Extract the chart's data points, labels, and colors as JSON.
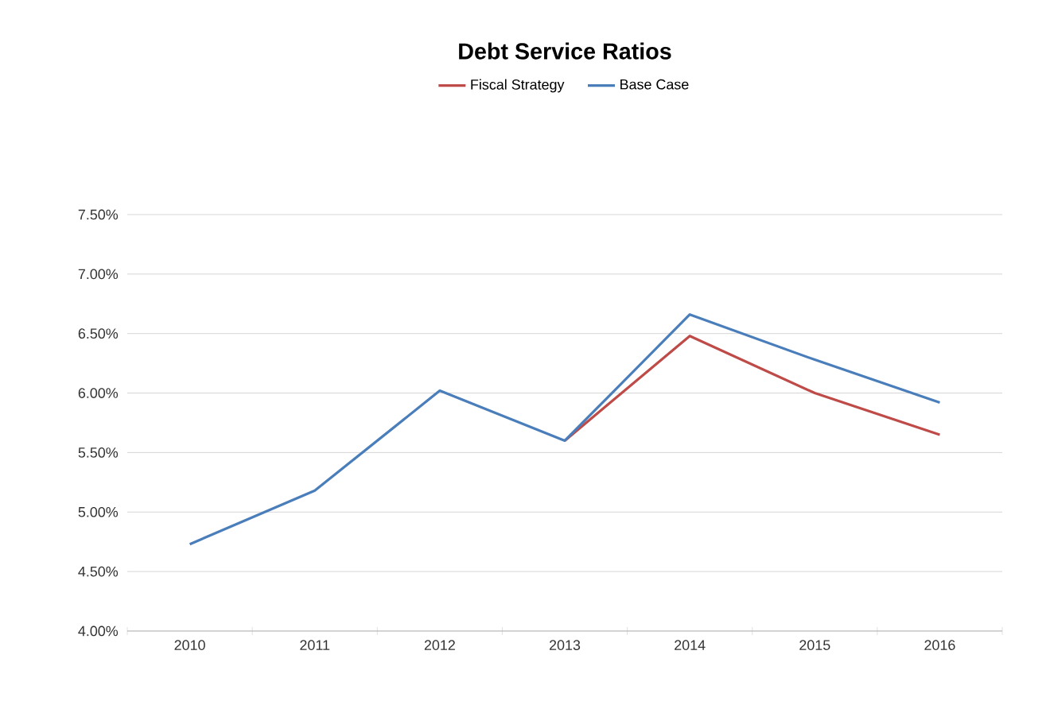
{
  "chart_data": {
    "type": "line",
    "title": "Debt Service Ratios",
    "categories": [
      "2010",
      "2011",
      "2012",
      "2013",
      "2014",
      "2015",
      "2016"
    ],
    "series": [
      {
        "name": "Fiscal Strategy",
        "color": "#be4b48",
        "values": [
          null,
          null,
          null,
          5.6,
          6.48,
          6.0,
          5.65
        ]
      },
      {
        "name": "Base Case",
        "color": "#4a7ebb",
        "values": [
          4.73,
          5.18,
          6.02,
          5.6,
          6.66,
          6.28,
          5.92
        ]
      }
    ],
    "ylim": [
      4.0,
      7.5
    ],
    "yticks": [
      {
        "value": 4.0,
        "label": "4.00%"
      },
      {
        "value": 4.5,
        "label": "4.50%"
      },
      {
        "value": 5.0,
        "label": "5.00%"
      },
      {
        "value": 5.5,
        "label": "5.50%"
      },
      {
        "value": 6.0,
        "label": "6.00%"
      },
      {
        "value": 6.5,
        "label": "6.50%"
      },
      {
        "value": 7.0,
        "label": "7.00%"
      },
      {
        "value": 7.5,
        "label": "7.50%"
      }
    ],
    "grid": "y",
    "legend": "top",
    "marker": "none",
    "line_style": "solid"
  }
}
